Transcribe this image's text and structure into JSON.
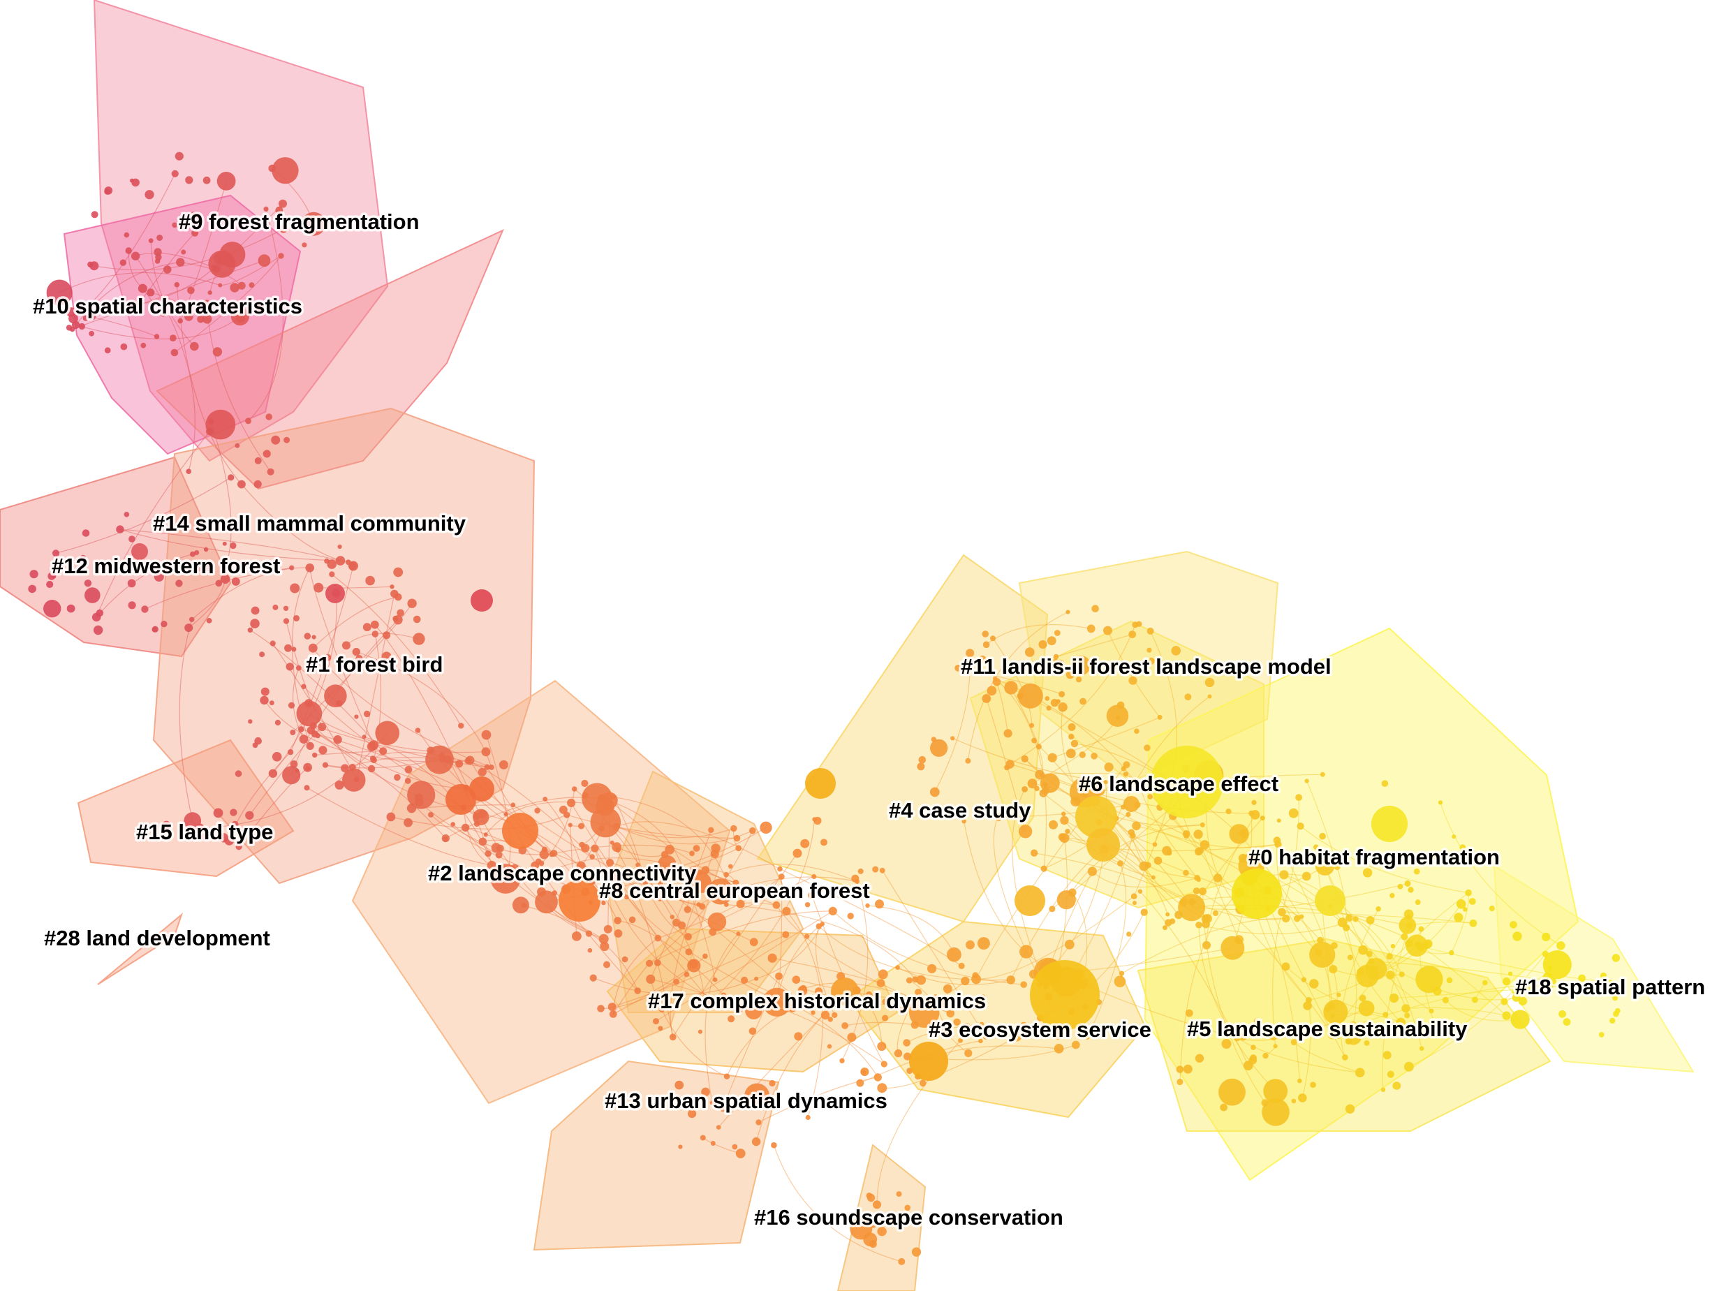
{
  "clusters": [
    {
      "id": "c9",
      "label": "#9 forest fragmentation",
      "color": "#f48aa0"
    },
    {
      "id": "c10",
      "label": "#10 spatial characteristics",
      "color": "#f06fa6"
    },
    {
      "id": "c14",
      "label": "#14 small mammal community",
      "color": "#f2878a"
    },
    {
      "id": "c12",
      "label": "#12 midwestern forest",
      "color": "#f0857f"
    },
    {
      "id": "c1",
      "label": "#1 forest bird",
      "color": "#f3a283"
    },
    {
      "id": "c15",
      "label": "#15 land type",
      "color": "#f59d7e"
    },
    {
      "id": "c28",
      "label": "#28 land development",
      "color": "#f59d7e"
    },
    {
      "id": "c2",
      "label": "#2 landscape connectivity",
      "color": "#f7b684"
    },
    {
      "id": "c8",
      "label": "#8 central european forest",
      "color": "#f7c07a"
    },
    {
      "id": "c13",
      "label": "#13 urban spatial dynamics",
      "color": "#f6b67a"
    },
    {
      "id": "c16",
      "label": "#16 soundscape conservation",
      "color": "#f6c274"
    },
    {
      "id": "c17",
      "label": "#17 complex historical dynamics",
      "color": "#f8c36c"
    },
    {
      "id": "c4",
      "label": "#4 case study",
      "color": "#f9d76a"
    },
    {
      "id": "c11",
      "label": "#11 landis-ii forest landscape model",
      "color": "#fbe27a"
    },
    {
      "id": "c6",
      "label": "#6 landscape effect",
      "color": "#fbe66a"
    },
    {
      "id": "c3",
      "label": "#3 ecosystem service",
      "color": "#fad462"
    },
    {
      "id": "c0",
      "label": "#0 habitat fragmentation",
      "color": "#fdf45a"
    },
    {
      "id": "c5",
      "label": "#5 landscape sustainability",
      "color": "#fbe95c"
    },
    {
      "id": "c18",
      "label": "#18 spatial pattern",
      "color": "#fdf67e"
    }
  ]
}
